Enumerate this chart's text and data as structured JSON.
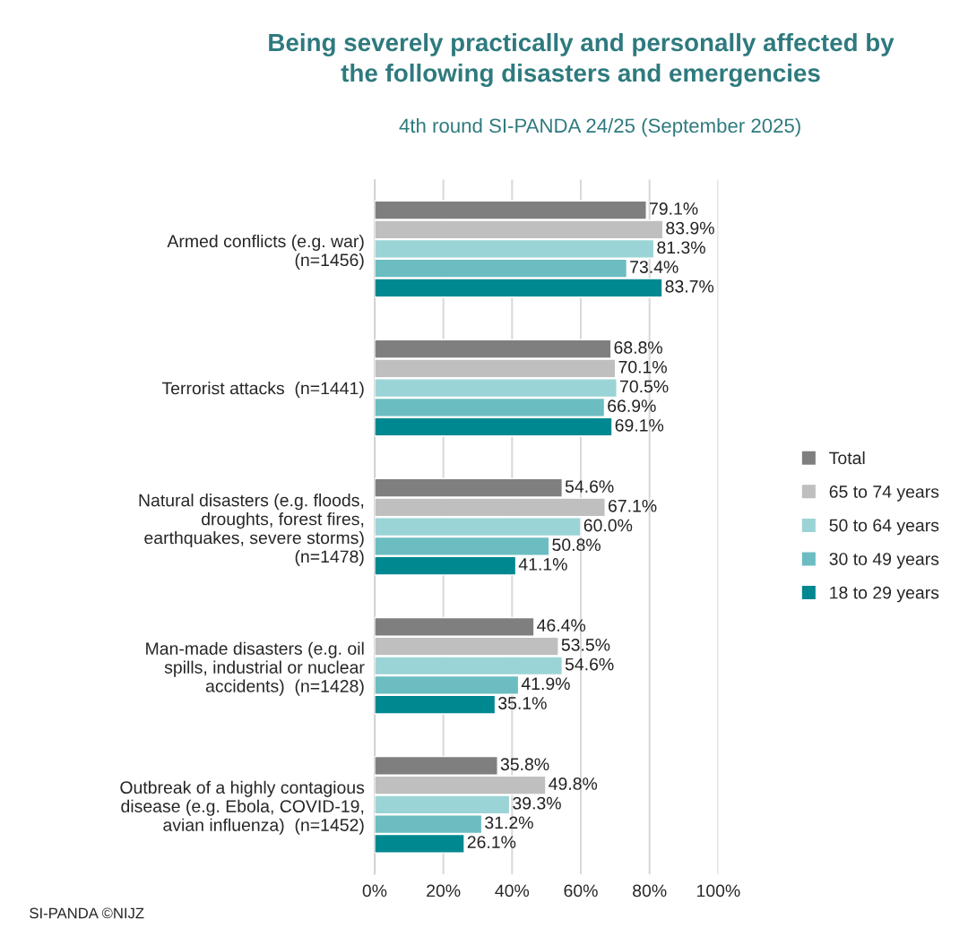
{
  "chart_data": {
    "type": "bar",
    "orientation": "horizontal",
    "title": "Being severely practically and personally affected by\nthe following disasters and emergencies",
    "subtitle": "4th round SI-PANDA 24/25 (September 2025)",
    "categories": [
      "Armed conflicts (e.g. war)\n(n=1456)",
      "Terrorist attacks  (n=1441)",
      "Natural disasters (e.g. floods,\ndroughts, forest fires,\nearthquakes, severe storms)\n(n=1478)",
      "Man-made disasters (e.g. oil\nspills, industrial or nuclear\naccidents)  (n=1428)",
      "Outbreak of a highly contagious\ndisease (e.g. Ebola, COVID-19,\navian influenza)  (n=1452)"
    ],
    "series": [
      {
        "name": "Total",
        "color": "#7f7f7f",
        "values": [
          79.1,
          68.8,
          54.6,
          46.4,
          35.8
        ],
        "value_labels": [
          "79.1%",
          "68.8%",
          "54.6%",
          "46.4%",
          "35.8%"
        ]
      },
      {
        "name": "65 to 74 years",
        "color": "#bfbfbf",
        "values": [
          83.9,
          70.1,
          67.1,
          53.5,
          49.8
        ],
        "value_labels": [
          "83.9%",
          "70.1%",
          "67.1%",
          "53.5%",
          "49.8%"
        ]
      },
      {
        "name": "50 to 64 years",
        "color": "#9bd4d6",
        "values": [
          81.3,
          70.5,
          60.0,
          54.6,
          39.3
        ],
        "value_labels": [
          "81.3%",
          "70.5%",
          "60.0%",
          "54.6%",
          "39.3%"
        ]
      },
      {
        "name": "30 to 49 years",
        "color": "#6bbdc1",
        "values": [
          73.4,
          66.9,
          50.8,
          41.9,
          31.2
        ],
        "value_labels": [
          "73.4%",
          "66.9%",
          "50.8%",
          "41.9%",
          "31.2%"
        ]
      },
      {
        "name": "18 to 29 years",
        "color": "#008891",
        "values": [
          83.7,
          69.1,
          41.1,
          35.1,
          26.1
        ],
        "value_labels": [
          "83.7%",
          "69.1%",
          "41.1%",
          "35.1%",
          "26.1%"
        ]
      }
    ],
    "xlim": [
      0,
      100
    ],
    "xticks": [
      {
        "value": 0,
        "label": "0%"
      },
      {
        "value": 20,
        "label": "20%"
      },
      {
        "value": 40,
        "label": "40%"
      },
      {
        "value": 60,
        "label": "60%"
      },
      {
        "value": 80,
        "label": "80%"
      },
      {
        "value": 100,
        "label": "100%"
      }
    ],
    "grid": "x",
    "legend": "right",
    "annotations": [
      "SI-PANDA ©NIJZ"
    ]
  }
}
